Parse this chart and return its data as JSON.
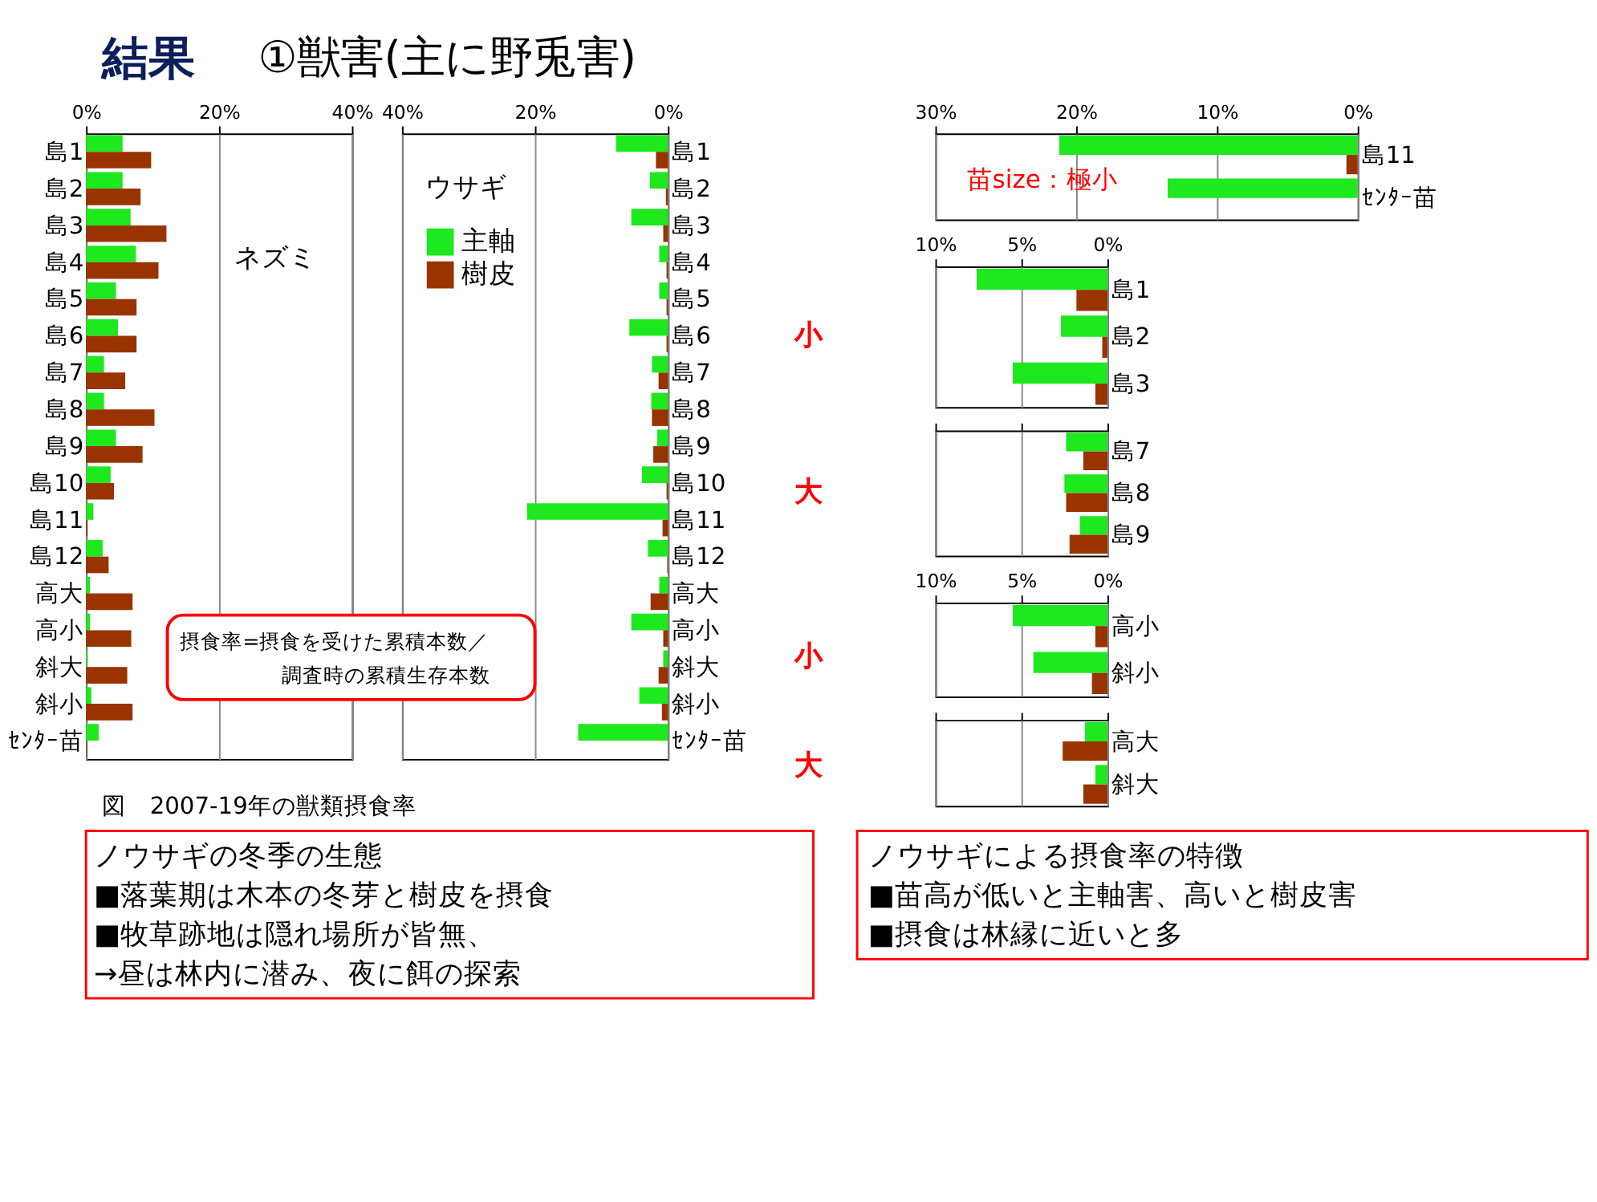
{
  "chart_data": [
    {
      "type": "bar",
      "orientation": "horizontal",
      "title": "①獣害(主に野兎害)",
      "categories": [
        "島1",
        "島2",
        "島3",
        "島4",
        "島5",
        "島6",
        "島7",
        "島8",
        "島9",
        "島10",
        "島11",
        "島12",
        "高大",
        "高小",
        "斜大",
        "斜小",
        "ｾﾝﾀｰ苗"
      ],
      "series": [
        {
          "color": "#1ee81e",
          "values": [
            5.5,
            5.5,
            6.7,
            7.5,
            4.5,
            4.8,
            2.7,
            2.7,
            4.5,
            3.7,
            1.1,
            2.5,
            0.6,
            0.6,
            0.2,
            0.8,
            1.9
          ]
        },
        {
          "color": "#993300",
          "values": [
            9.8,
            8.2,
            12.1,
            10.9,
            7.6,
            7.6,
            5.9,
            10.3,
            8.5,
            4.2,
            0.2,
            3.4,
            7.0,
            6.8,
            6.2,
            7.0,
            0.1
          ]
        }
      ],
      "xlim": [
        0,
        40
      ],
      "xticks": [
        {
          "value": 0,
          "label": "0%"
        },
        {
          "value": 20,
          "label": "20%"
        },
        {
          "value": 40,
          "label": "40%"
        }
      ],
      "grid": "x",
      "legend": false,
      "annotations": [
        "結果",
        "ネズミ",
        "図　2007-19年の獣類摂食率",
        "ノウサギの冬季の生態",
        "■落葉期は木本の冬芽と樹皮を摂食",
        "■牧草跡地は隠れ場所が皆無、",
        "　→昼は林内に潜み、夜に餌の探索",
        "ノウサギによる摂食率の特徴",
        "■苗高が低いと主軸害、高いと樹皮害",
        "■摂食は林縁に近いと多"
      ]
    },
    {
      "type": "bar",
      "orientation": "horizontal",
      "categories": [
        "島1",
        "島2",
        "島3",
        "島4",
        "島5",
        "島6",
        "島7",
        "島8",
        "島9",
        "島10",
        "島11",
        "島12",
        "高大",
        "高小",
        "斜大",
        "斜小",
        "ｾﾝﾀｰ苗"
      ],
      "series": [
        {
          "name": "主軸",
          "color": "#1ee81e",
          "values": [
            7.8,
            2.7,
            5.5,
            1.3,
            1.3,
            5.8,
            2.4,
            2.5,
            1.6,
            3.9,
            21.2,
            3.0,
            1.3,
            5.5,
            0.7,
            4.3,
            13.5
          ]
        },
        {
          "name": "樹皮",
          "color": "#993300",
          "values": [
            1.8,
            0.3,
            0.7,
            0.2,
            0.2,
            0.2,
            1.4,
            2.4,
            2.2,
            0.2,
            0.8,
            0.1,
            2.6,
            0.7,
            1.4,
            0.9,
            0.0
          ]
        }
      ],
      "xlim": [
        40,
        0
      ],
      "xticks": [
        {
          "value": 40,
          "label": "40%"
        },
        {
          "value": 20,
          "label": "20%"
        },
        {
          "value": 0,
          "label": "0%"
        }
      ],
      "grid": "x",
      "legend": "top left",
      "annotations": [
        "ウサギ",
        "摂食率=摂食を受けた累積本数／",
        "調査時の累積生存本数"
      ]
    },
    {
      "type": "bar",
      "orientation": "horizontal",
      "categories": [
        "島11",
        "ｾﾝﾀｰ苗"
      ],
      "series": [
        {
          "color": "#1ee81e",
          "values": [
            21.2,
            13.5
          ]
        },
        {
          "color": "#993300",
          "values": [
            0.8,
            0.0
          ]
        }
      ],
      "xlim": [
        30,
        0
      ],
      "xticks": [
        {
          "value": 30,
          "label": "30%"
        },
        {
          "value": 20,
          "label": "20%"
        },
        {
          "value": 10,
          "label": "10%"
        },
        {
          "value": 0,
          "label": "0%"
        }
      ],
      "grid": "x",
      "legend": false,
      "annotations": [
        "苗size：極小"
      ]
    },
    {
      "type": "bar",
      "orientation": "horizontal",
      "categories": [
        "島1",
        "島2",
        "島3"
      ],
      "series": [
        {
          "color": "#1ee81e",
          "values": [
            7.6,
            2.7,
            5.5
          ]
        },
        {
          "color": "#993300",
          "values": [
            1.8,
            0.3,
            0.7
          ]
        }
      ],
      "xlim": [
        10,
        0
      ],
      "xticks": [
        {
          "value": 10,
          "label": "10%"
        },
        {
          "value": 5,
          "label": "5%"
        },
        {
          "value": 0,
          "label": "0%"
        }
      ],
      "grid": "x",
      "legend": false,
      "annotations": [
        "小"
      ]
    },
    {
      "type": "bar",
      "orientation": "horizontal",
      "categories": [
        "島7",
        "島8",
        "島9"
      ],
      "series": [
        {
          "color": "#1ee81e",
          "values": [
            2.4,
            2.5,
            1.6
          ]
        },
        {
          "color": "#993300",
          "values": [
            1.4,
            2.4,
            2.2
          ]
        }
      ],
      "xlim": [
        10,
        0
      ],
      "xticks": [
        {
          "value": 10,
          "label": null
        },
        {
          "value": 5,
          "label": null
        },
        {
          "value": 0,
          "label": null
        }
      ],
      "grid": "x",
      "legend": false,
      "tick_labels": "y",
      "annotations": [
        "大"
      ]
    },
    {
      "type": "bar",
      "orientation": "horizontal",
      "categories": [
        "高小",
        "斜小"
      ],
      "series": [
        {
          "color": "#1ee81e",
          "values": [
            5.5,
            4.3
          ]
        },
        {
          "color": "#993300",
          "values": [
            0.7,
            0.9
          ]
        }
      ],
      "xlim": [
        10,
        0
      ],
      "xticks": [
        {
          "value": 10,
          "label": "10%"
        },
        {
          "value": 5,
          "label": "5%"
        },
        {
          "value": 0,
          "label": "0%"
        }
      ],
      "grid": "x",
      "legend": false,
      "annotations": [
        "小"
      ]
    },
    {
      "type": "bar",
      "orientation": "horizontal",
      "categories": [
        "高大",
        "斜大"
      ],
      "series": [
        {
          "color": "#1ee81e",
          "values": [
            1.3,
            0.7
          ]
        },
        {
          "color": "#993300",
          "values": [
            2.6,
            1.4
          ]
        }
      ],
      "xlim": [
        10,
        0
      ],
      "xticks": [
        {
          "value": 10,
          "label": null
        },
        {
          "value": 5,
          "label": null
        },
        {
          "value": 0,
          "label": null
        }
      ],
      "grid": "x",
      "legend": false,
      "tick_labels": "y",
      "annotations": [
        "大"
      ]
    }
  ]
}
